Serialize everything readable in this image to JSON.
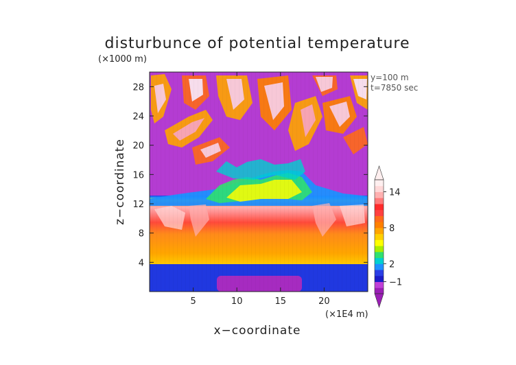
{
  "chart_data": {
    "type": "heatmap",
    "title": "disturbunce of potential temperature",
    "xlabel": "x−coordinate",
    "ylabel": "z−coordinate",
    "x_unit": "(×1E4 m)",
    "y_unit": "(×1000 m)",
    "xlim": [
      0,
      25
    ],
    "ylim": [
      0,
      30
    ],
    "x_ticks": [
      5,
      10,
      15,
      20
    ],
    "y_ticks": [
      4,
      8,
      12,
      16,
      20,
      24,
      28
    ],
    "annotations": [
      "y=100 m",
      "t=7850 sec"
    ],
    "colorbar": {
      "tick_labels": [
        "14",
        "8",
        "2",
        "−1"
      ],
      "tick_values": [
        14,
        8,
        2,
        -1
      ],
      "colors_bottom_to_top": [
        "#9b1fb6",
        "#c040d8",
        "#1c1cc8",
        "#2a3ee6",
        "#1e90ff",
        "#00d0d0",
        "#30e070",
        "#aaee00",
        "#ffff00",
        "#ffd000",
        "#ffa500",
        "#ff8000",
        "#ff6a1a",
        "#ff4040",
        "#ff2a2a",
        "#ff7a7a",
        "#ffb0b0",
        "#ffd8d8",
        "#ffefef"
      ]
    },
    "field": {
      "description_rows": [
        {
          "z_range": [
            0,
            1.5
          ],
          "x_range": [
            8,
            17.5
          ],
          "value": -3
        },
        {
          "z_range": [
            0,
            4
          ],
          "x_range": [
            0,
            25
          ],
          "value": -1
        },
        {
          "z_range": [
            4,
            8
          ],
          "x_range": [
            0,
            25
          ],
          "value": 6
        },
        {
          "z_range": [
            8,
            11.5
          ],
          "x_range": [
            0,
            25
          ],
          "value": 10
        },
        {
          "z_range": [
            11.5,
            14
          ],
          "x_range": [
            0,
            25
          ],
          "value": -2
        }
      ]
    }
  }
}
